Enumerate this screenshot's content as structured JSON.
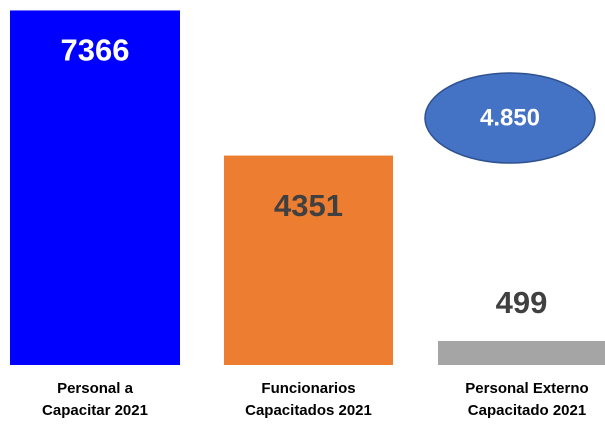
{
  "chart_data": {
    "type": "bar",
    "categories": [
      "Personal a\nCapacitar 2021",
      "Funcionarios\nCapacitados 2021",
      "Personal Externo\nCapacitado 2021"
    ],
    "values": [
      7366,
      4351,
      499
    ],
    "colors": [
      "#0000ff",
      "#ed7d31",
      "#a5a5a5"
    ],
    "value_label_colors": [
      "#ffffff",
      "#404040",
      "#404040"
    ],
    "ylim": [
      0,
      7500
    ],
    "annotation": "4.850",
    "annotation_color": "#4472c4"
  }
}
